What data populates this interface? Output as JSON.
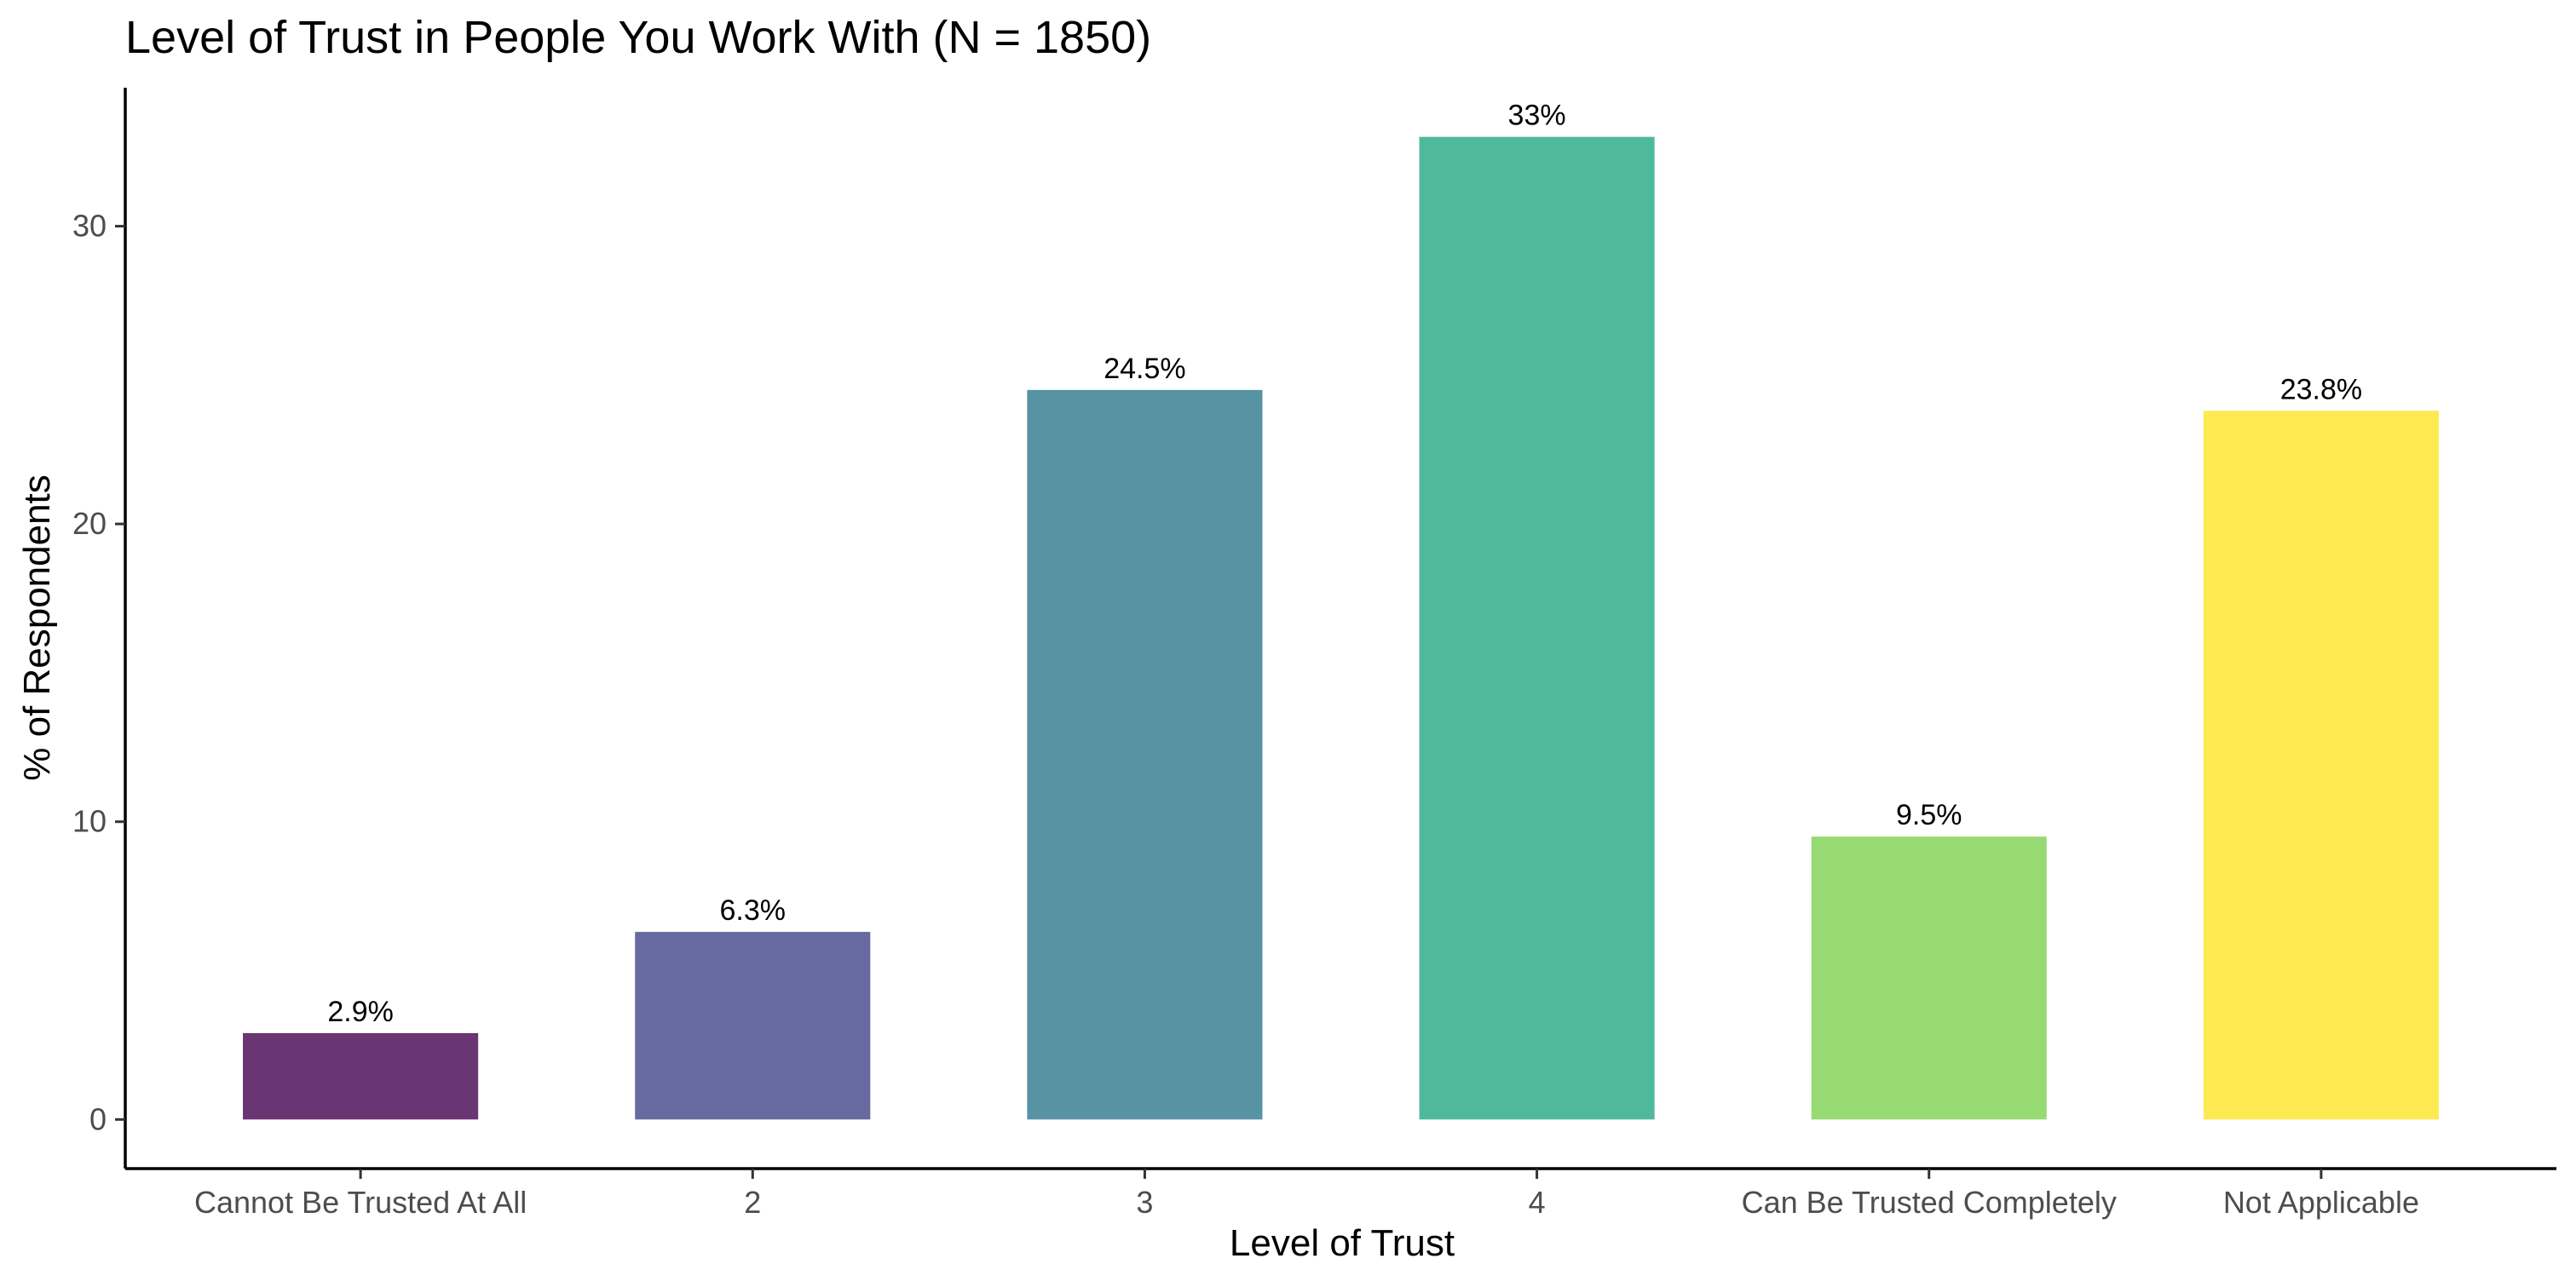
{
  "chart_data": {
    "type": "bar",
    "title": "Level of Trust in People You Work With (N = 1850)",
    "xlabel": "Level of Trust",
    "ylabel": "% of Respondents",
    "categories": [
      "Cannot Be Trusted At All",
      "2",
      "3",
      "4",
      "Can Be Trusted Completely",
      "Not Applicable"
    ],
    "values": [
      2.9,
      6.3,
      24.5,
      33,
      9.5,
      23.8
    ],
    "value_labels": [
      "2.9%",
      "6.3%",
      "24.5%",
      "33%",
      "9.5%",
      "23.8%"
    ],
    "colors": [
      "#6a3573",
      "#676a9f",
      "#5893a4",
      "#4fb99e",
      "#97d973",
      "#fdea52"
    ],
    "yticks": [
      0,
      10,
      20,
      30
    ],
    "ylim": [
      -1.65,
      34.65
    ],
    "grid": false,
    "legend": "none"
  }
}
